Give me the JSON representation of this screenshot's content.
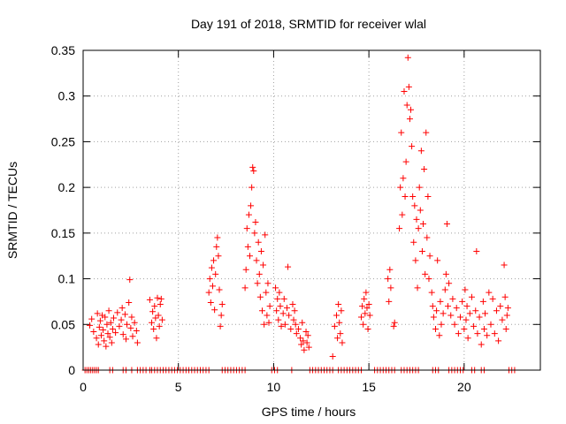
{
  "chart_data": {
    "type": "scatter",
    "title": "Day 191 of 2018, SRMTID for receiver wlal",
    "xlabel": "GPS time / hours",
    "ylabel": "SRMTID / TECUs",
    "xlim": [
      0,
      24
    ],
    "ylim": [
      0,
      0.35
    ],
    "xticks": [
      0,
      5,
      10,
      15,
      20
    ],
    "xtick_labels": [
      "0",
      "5",
      "10",
      "15",
      "20"
    ],
    "yticks": [
      0,
      0.05,
      0.1,
      0.15,
      0.2,
      0.25,
      0.3,
      0.35
    ],
    "ytick_labels": [
      "0",
      "0.05",
      "0.1",
      "0.15",
      "0.2",
      "0.25",
      "0.3",
      "0.35"
    ],
    "grid": true,
    "marker": "+",
    "color": "#ff0000",
    "series": [
      {
        "name": "SRMTID",
        "points": [
          [
            0.35,
            0.049
          ],
          [
            0.45,
            0.056
          ],
          [
            0.55,
            0.042
          ],
          [
            0.7,
            0.035
          ],
          [
            0.75,
            0.062
          ],
          [
            0.8,
            0.028
          ],
          [
            0.85,
            0.047
          ],
          [
            0.9,
            0.054
          ],
          [
            0.95,
            0.038
          ],
          [
            1.0,
            0.06
          ],
          [
            1.05,
            0.044
          ],
          [
            1.1,
            0.032
          ],
          [
            1.15,
            0.058
          ],
          [
            1.2,
            0.026
          ],
          [
            1.25,
            0.05
          ],
          [
            1.3,
            0.04
          ],
          [
            1.35,
            0.065
          ],
          [
            1.4,
            0.036
          ],
          [
            1.45,
            0.052
          ],
          [
            1.5,
            0.03
          ],
          [
            1.55,
            0.045
          ],
          [
            1.6,
            0.057
          ],
          [
            1.7,
            0.041
          ],
          [
            1.8,
            0.063
          ],
          [
            1.9,
            0.048
          ],
          [
            2.0,
            0.055
          ],
          [
            2.05,
            0.068
          ],
          [
            2.1,
            0.039
          ],
          [
            2.2,
            0.061
          ],
          [
            2.25,
            0.034
          ],
          [
            2.3,
            0.05
          ],
          [
            2.4,
            0.074
          ],
          [
            2.45,
            0.099
          ],
          [
            2.5,
            0.046
          ],
          [
            2.55,
            0.058
          ],
          [
            2.6,
            0.037
          ],
          [
            2.7,
            0.052
          ],
          [
            2.8,
            0.043
          ],
          [
            2.85,
            0.03
          ],
          [
            3.5,
            0.077
          ],
          [
            3.6,
            0.052
          ],
          [
            3.65,
            0.064
          ],
          [
            3.7,
            0.045
          ],
          [
            3.75,
            0.07
          ],
          [
            3.8,
            0.057
          ],
          [
            3.85,
            0.035
          ],
          [
            3.9,
            0.079
          ],
          [
            3.95,
            0.06
          ],
          [
            4.0,
            0.048
          ],
          [
            4.05,
            0.072
          ],
          [
            4.1,
            0.078
          ],
          [
            4.15,
            0.055
          ],
          [
            6.6,
            0.085
          ],
          [
            6.65,
            0.1
          ],
          [
            6.7,
            0.074
          ],
          [
            6.75,
            0.112
          ],
          [
            6.8,
            0.092
          ],
          [
            6.85,
            0.12
          ],
          [
            6.9,
            0.066
          ],
          [
            6.95,
            0.105
          ],
          [
            7.0,
            0.135
          ],
          [
            7.05,
            0.145
          ],
          [
            7.1,
            0.125
          ],
          [
            7.15,
            0.088
          ],
          [
            7.2,
            0.048
          ],
          [
            7.25,
            0.06
          ],
          [
            7.3,
            0.072
          ],
          [
            8.5,
            0.09
          ],
          [
            8.55,
            0.11
          ],
          [
            8.6,
            0.155
          ],
          [
            8.65,
            0.135
          ],
          [
            8.7,
            0.17
          ],
          [
            8.75,
            0.125
          ],
          [
            8.8,
            0.18
          ],
          [
            8.85,
            0.2
          ],
          [
            8.9,
            0.222
          ],
          [
            8.95,
            0.218
          ],
          [
            9.0,
            0.15
          ],
          [
            9.05,
            0.162
          ],
          [
            9.1,
            0.12
          ],
          [
            9.15,
            0.095
          ],
          [
            9.2,
            0.14
          ],
          [
            9.25,
            0.105
          ],
          [
            9.3,
            0.08
          ],
          [
            9.35,
            0.13
          ],
          [
            9.4,
            0.065
          ],
          [
            9.45,
            0.115
          ],
          [
            9.5,
            0.05
          ],
          [
            9.55,
            0.148
          ],
          [
            9.6,
            0.085
          ],
          [
            9.65,
            0.06
          ],
          [
            9.7,
            0.095
          ],
          [
            9.75,
            0.052
          ],
          [
            9.8,
            0.07
          ],
          [
            10.1,
            0.09
          ],
          [
            10.15,
            0.065
          ],
          [
            10.2,
            0.078
          ],
          [
            10.25,
            0.055
          ],
          [
            10.3,
            0.085
          ],
          [
            10.35,
            0.07
          ],
          [
            10.4,
            0.048
          ],
          [
            10.5,
            0.062
          ],
          [
            10.55,
            0.078
          ],
          [
            10.6,
            0.05
          ],
          [
            10.7,
            0.068
          ],
          [
            10.75,
            0.113
          ],
          [
            10.8,
            0.06
          ],
          [
            10.9,
            0.045
          ],
          [
            11.0,
            0.072
          ],
          [
            11.05,
            0.055
          ],
          [
            11.1,
            0.065
          ],
          [
            11.15,
            0.05
          ],
          [
            11.2,
            0.04
          ],
          [
            11.3,
            0.045
          ],
          [
            11.4,
            0.035
          ],
          [
            11.45,
            0.028
          ],
          [
            11.5,
            0.052
          ],
          [
            11.55,
            0.032
          ],
          [
            11.6,
            0.022
          ],
          [
            11.7,
            0.042
          ],
          [
            11.75,
            0.03
          ],
          [
            11.8,
            0.038
          ],
          [
            11.85,
            0.025
          ],
          [
            13.1,
            0.015
          ],
          [
            13.2,
            0.048
          ],
          [
            13.3,
            0.06
          ],
          [
            13.35,
            0.035
          ],
          [
            13.4,
            0.072
          ],
          [
            13.45,
            0.052
          ],
          [
            13.5,
            0.04
          ],
          [
            13.55,
            0.065
          ],
          [
            13.6,
            0.03
          ],
          [
            14.6,
            0.058
          ],
          [
            14.65,
            0.07
          ],
          [
            14.7,
            0.05
          ],
          [
            14.75,
            0.078
          ],
          [
            14.8,
            0.062
          ],
          [
            14.85,
            0.085
          ],
          [
            14.9,
            0.068
          ],
          [
            14.95,
            0.045
          ],
          [
            15.0,
            0.072
          ],
          [
            15.05,
            0.06
          ],
          [
            16.0,
            0.1
          ],
          [
            16.05,
            0.075
          ],
          [
            16.1,
            0.11
          ],
          [
            16.15,
            0.09
          ],
          [
            16.3,
            0.048
          ],
          [
            16.35,
            0.052
          ],
          [
            16.6,
            0.155
          ],
          [
            16.65,
            0.2
          ],
          [
            16.7,
            0.26
          ],
          [
            16.75,
            0.17
          ],
          [
            16.8,
            0.21
          ],
          [
            16.85,
            0.305
          ],
          [
            16.9,
            0.19
          ],
          [
            16.95,
            0.228
          ],
          [
            17.0,
            0.29
          ],
          [
            17.05,
            0.342
          ],
          [
            17.1,
            0.31
          ],
          [
            17.15,
            0.275
          ],
          [
            17.2,
            0.285
          ],
          [
            17.25,
            0.245
          ],
          [
            17.3,
            0.19
          ],
          [
            17.35,
            0.14
          ],
          [
            17.4,
            0.18
          ],
          [
            17.45,
            0.12
          ],
          [
            17.5,
            0.165
          ],
          [
            17.55,
            0.09
          ],
          [
            17.6,
            0.155
          ],
          [
            17.65,
            0.2
          ],
          [
            17.7,
            0.175
          ],
          [
            17.75,
            0.24
          ],
          [
            17.8,
            0.13
          ],
          [
            17.85,
            0.16
          ],
          [
            17.9,
            0.22
          ],
          [
            17.95,
            0.105
          ],
          [
            18.0,
            0.26
          ],
          [
            18.05,
            0.145
          ],
          [
            18.1,
            0.19
          ],
          [
            18.15,
            0.1
          ],
          [
            18.2,
            0.125
          ],
          [
            18.3,
            0.085
          ],
          [
            18.35,
            0.07
          ],
          [
            18.4,
            0.058
          ],
          [
            18.5,
            0.045
          ],
          [
            18.55,
            0.065
          ],
          [
            18.6,
            0.12
          ],
          [
            18.7,
            0.038
          ],
          [
            18.75,
            0.075
          ],
          [
            18.8,
            0.05
          ],
          [
            18.9,
            0.062
          ],
          [
            19.0,
            0.088
          ],
          [
            19.05,
            0.105
          ],
          [
            19.1,
            0.16
          ],
          [
            19.15,
            0.07
          ],
          [
            19.2,
            0.095
          ],
          [
            19.3,
            0.06
          ],
          [
            19.4,
            0.078
          ],
          [
            19.5,
            0.05
          ],
          [
            19.6,
            0.068
          ],
          [
            19.7,
            0.04
          ],
          [
            19.8,
            0.058
          ],
          [
            19.9,
            0.075
          ],
          [
            20.0,
            0.045
          ],
          [
            20.05,
            0.088
          ],
          [
            20.1,
            0.055
          ],
          [
            20.15,
            0.07
          ],
          [
            20.2,
            0.035
          ],
          [
            20.3,
            0.062
          ],
          [
            20.4,
            0.08
          ],
          [
            20.5,
            0.048
          ],
          [
            20.6,
            0.065
          ],
          [
            20.65,
            0.13
          ],
          [
            20.7,
            0.04
          ],
          [
            20.8,
            0.058
          ],
          [
            20.9,
            0.028
          ],
          [
            21.0,
            0.075
          ],
          [
            21.05,
            0.045
          ],
          [
            21.1,
            0.062
          ],
          [
            21.2,
            0.038
          ],
          [
            21.3,
            0.085
          ],
          [
            21.4,
            0.05
          ],
          [
            21.5,
            0.078
          ],
          [
            21.6,
            0.04
          ],
          [
            21.7,
            0.065
          ],
          [
            21.8,
            0.032
          ],
          [
            21.9,
            0.07
          ],
          [
            22.0,
            0.055
          ],
          [
            22.1,
            0.115
          ],
          [
            22.15,
            0.08
          ],
          [
            22.2,
            0.045
          ],
          [
            22.25,
            0.06
          ],
          [
            22.3,
            0.068
          ]
        ]
      },
      {
        "name": "zero-level",
        "y": 0,
        "x": [
          0.1,
          0.2,
          0.3,
          0.4,
          0.5,
          0.6,
          0.7,
          0.8,
          1.4,
          1.55,
          2.1,
          2.25,
          2.55,
          2.85,
          3.0,
          3.15,
          3.3,
          3.5,
          3.6,
          3.75,
          3.9,
          4.05,
          4.2,
          4.35,
          4.5,
          4.65,
          4.8,
          4.95,
          5.1,
          5.25,
          5.4,
          5.55,
          5.7,
          5.85,
          6.0,
          6.15,
          6.3,
          6.45,
          6.6,
          7.3,
          7.45,
          7.6,
          7.75,
          7.9,
          8.05,
          8.2,
          8.35,
          8.5,
          9.9,
          10.05,
          10.2,
          10.95,
          11.9,
          12.05,
          12.2,
          12.35,
          12.5,
          12.65,
          12.8,
          12.95,
          13.1,
          13.4,
          13.55,
          13.7,
          13.85,
          14.0,
          14.15,
          14.3,
          14.45,
          14.6,
          15.3,
          15.45,
          15.6,
          15.75,
          15.9,
          16.05,
          16.2,
          16.35,
          16.7,
          16.85,
          17.0,
          17.15,
          17.3,
          17.45,
          17.6,
          18.35,
          18.5,
          18.65,
          19.2,
          19.35,
          19.5,
          19.65,
          19.8,
          19.95,
          20.4,
          20.55,
          20.9,
          21.05,
          22.35,
          22.5,
          22.65
        ]
      }
    ]
  }
}
